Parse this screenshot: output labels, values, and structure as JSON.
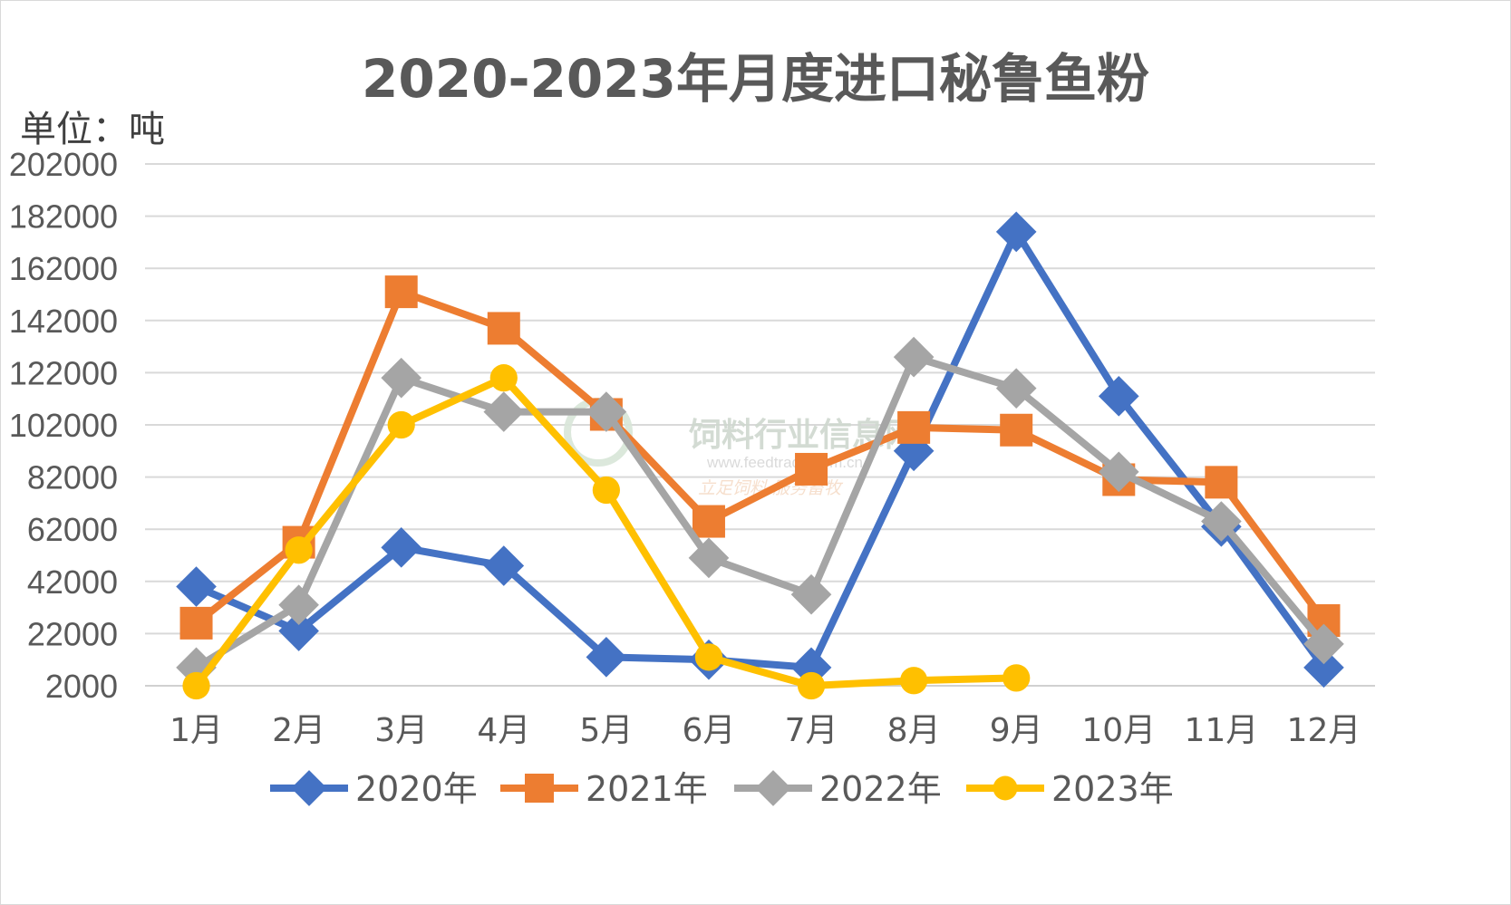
{
  "chart_data": {
    "type": "line",
    "title": "2020-2023年月度进口秘鲁鱼粉",
    "unit_label": "单位：吨",
    "categories": [
      "1月",
      "2月",
      "3月",
      "4月",
      "5月",
      "6月",
      "7月",
      "8月",
      "9月",
      "10月",
      "11月",
      "12月"
    ],
    "y_ticks": [
      "202000",
      "182000",
      "162000",
      "142000",
      "122000",
      "102000",
      "82000",
      "62000",
      "42000",
      "22000",
      "2000"
    ],
    "ylim": [
      2000,
      202000
    ],
    "grid": true,
    "legend_position": "bottom",
    "series": [
      {
        "name": "2020年",
        "color": "#4472c4",
        "marker": "diamond",
        "values": [
          40000,
          23000,
          55000,
          48000,
          13000,
          12000,
          9000,
          92000,
          176000,
          113000,
          63000,
          9000
        ]
      },
      {
        "name": "2021年",
        "color": "#ed7d31",
        "marker": "square",
        "values": [
          26000,
          57000,
          153000,
          139000,
          106000,
          65000,
          85000,
          101000,
          100000,
          81000,
          80000,
          27000
        ]
      },
      {
        "name": "2022年",
        "color": "#a5a5a5",
        "marker": "diamond",
        "values": [
          9000,
          33000,
          120000,
          107000,
          107000,
          51000,
          37000,
          128000,
          116000,
          84000,
          65000,
          18000
        ]
      },
      {
        "name": "2023年",
        "color": "#ffc000",
        "marker": "circle",
        "values": [
          2000,
          54000,
          102000,
          120000,
          77000,
          13000,
          2000,
          4000,
          5000,
          null,
          null,
          null
        ]
      }
    ]
  },
  "watermark": {
    "title": "饲料行业信息网",
    "url": "www.feedtrade.com.cn",
    "slogan": "立足饲料    服务畜牧"
  }
}
